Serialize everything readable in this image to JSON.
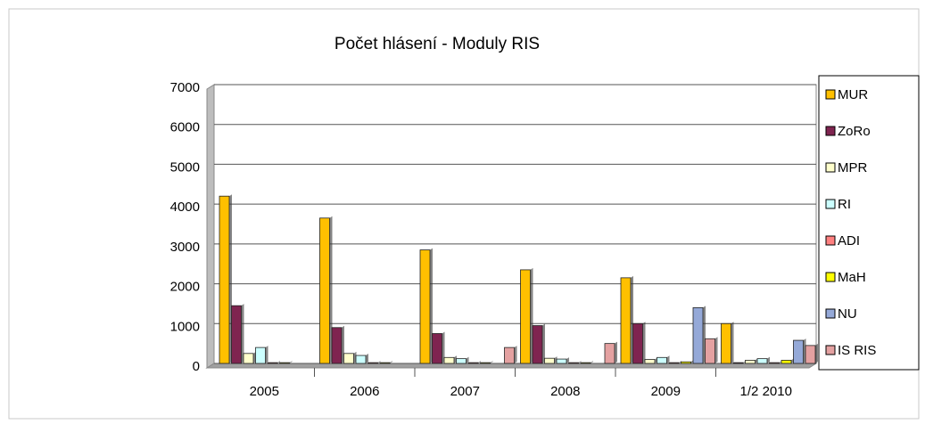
{
  "chart_data": {
    "type": "bar",
    "title": "Počet hlásení - Moduly RIS",
    "categories": [
      "2005",
      "2006",
      "2007",
      "2008",
      "2009",
      "1/2 2010"
    ],
    "series": [
      {
        "name": "MUR",
        "color": "#ffc000",
        "values": [
          4200,
          3650,
          2850,
          2350,
          2150,
          1000
        ]
      },
      {
        "name": "ZoRo",
        "color": "#7f2450",
        "values": [
          1450,
          900,
          750,
          950,
          1000,
          20
        ]
      },
      {
        "name": "MPR",
        "color": "#ffffcc",
        "values": [
          250,
          250,
          150,
          130,
          100,
          80
        ]
      },
      {
        "name": "RI",
        "color": "#ccffff",
        "values": [
          400,
          200,
          120,
          110,
          150,
          120
        ]
      },
      {
        "name": "ADI",
        "color": "#ff8080",
        "values": [
          20,
          20,
          20,
          20,
          20,
          20
        ]
      },
      {
        "name": "MaH",
        "color": "#ffff00",
        "values": [
          20,
          20,
          20,
          20,
          40,
          80
        ]
      },
      {
        "name": "NU",
        "color": "#95a9d8",
        "values": [
          0,
          0,
          0,
          0,
          1400,
          580
        ]
      },
      {
        "name": "IS RIS",
        "color": "#e4a1a1",
        "values": [
          0,
          0,
          400,
          500,
          620,
          450
        ]
      }
    ],
    "ylim": [
      0,
      7000
    ],
    "yticks": [
      0,
      1000,
      2000,
      3000,
      4000,
      5000,
      6000,
      7000
    ],
    "grid": true,
    "legend": "right"
  }
}
